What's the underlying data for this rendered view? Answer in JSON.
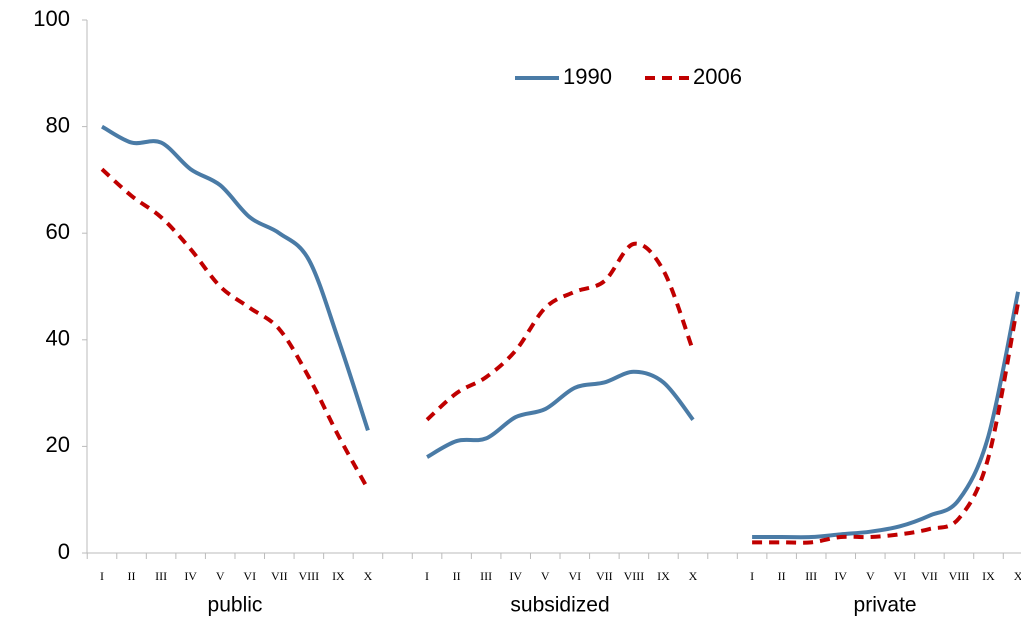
{
  "chart_data": {
    "type": "line",
    "categories": [
      "I",
      "II",
      "III",
      "IV",
      "V",
      "VI",
      "VII",
      "VIII",
      "IX",
      "X",
      null,
      "I",
      "II",
      "III",
      "IV",
      "V",
      "VI",
      "VII",
      "VIII",
      "IX",
      "X",
      null,
      "I",
      "II",
      "III",
      "IV",
      "V",
      "VI",
      "VII",
      "VIII",
      "IX",
      "X"
    ],
    "group_labels": [
      "public",
      "subsidized",
      "private"
    ],
    "series": [
      {
        "name": "1990",
        "color": "#4a7ba6",
        "dash": false,
        "values": [
          80,
          77,
          77,
          72,
          69,
          63,
          60,
          55,
          40,
          23,
          null,
          18,
          21,
          21.5,
          25.5,
          27,
          31,
          32,
          34,
          32,
          25,
          null,
          3,
          3,
          3,
          3.5,
          4,
          5,
          7,
          10,
          22,
          49
        ]
      },
      {
        "name": "2006",
        "color": "#c00000",
        "dash": true,
        "values": [
          72,
          67,
          63,
          57,
          50,
          46,
          42,
          33,
          22,
          12,
          null,
          25,
          30,
          33,
          38,
          46,
          49,
          51,
          58,
          53,
          38,
          null,
          2,
          2,
          2,
          3,
          3,
          3.5,
          4.5,
          6.5,
          18,
          47
        ]
      }
    ],
    "ylim": [
      0,
      100
    ],
    "yticks": [
      0,
      20,
      40,
      60,
      80,
      100
    ],
    "grid": false,
    "legend": "top-center"
  }
}
